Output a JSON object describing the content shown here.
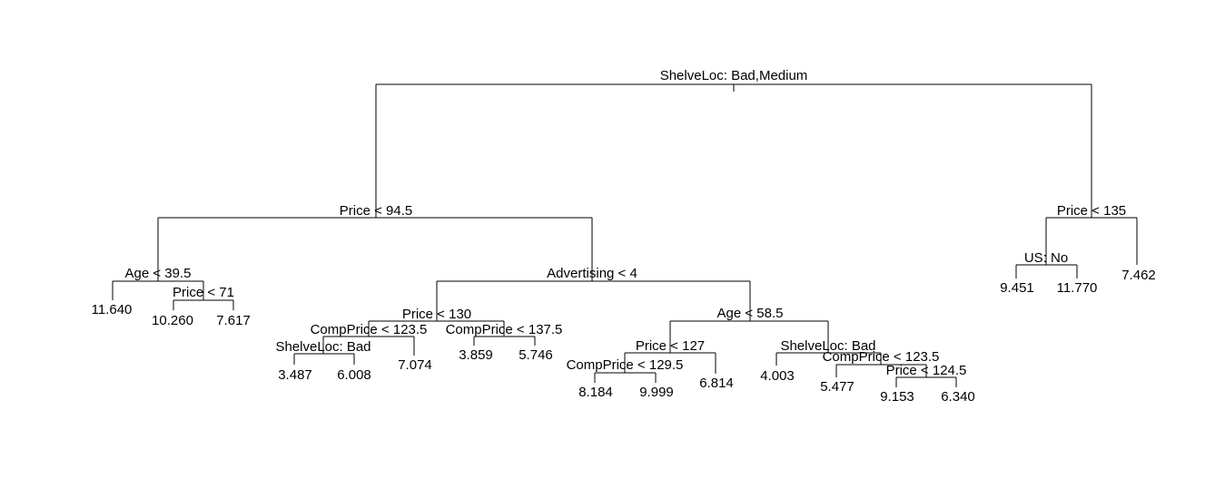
{
  "tree": {
    "splits": {
      "root": "ShelveLoc: Bad,Medium",
      "price_945": "Price < 94.5",
      "age_395": "Age < 39.5",
      "price_71": "Price < 71",
      "advertising_4": "Advertising < 4",
      "price_130": "Price < 130",
      "compprice_1235_a": "CompPrice < 123.5",
      "shelveloc_bad_a": "ShelveLoc: Bad",
      "compprice_1375": "CompPrice < 137.5",
      "age_585": "Age < 58.5",
      "price_127": "Price < 127",
      "compprice_1295": "CompPrice < 129.5",
      "shelveloc_bad_b": "ShelveLoc: Bad",
      "compprice_1235_b": "CompPrice < 123.5",
      "price_1245": "Price < 124.5",
      "price_135": "Price < 135",
      "us_no": "US: No"
    },
    "leaves": {
      "l1": "11.640",
      "l2": "10.260",
      "l3": "7.617",
      "l4": "3.487",
      "l5": "6.008",
      "l6": "7.074",
      "l7": "3.859",
      "l8": "5.746",
      "l9": "8.184",
      "l10": "9.999",
      "l11": "6.814",
      "l12": "4.003",
      "l13": "5.477",
      "l14": "9.153",
      "l15": "6.340",
      "l16": "9.451",
      "l17": "11.770",
      "l18": "7.462"
    }
  }
}
